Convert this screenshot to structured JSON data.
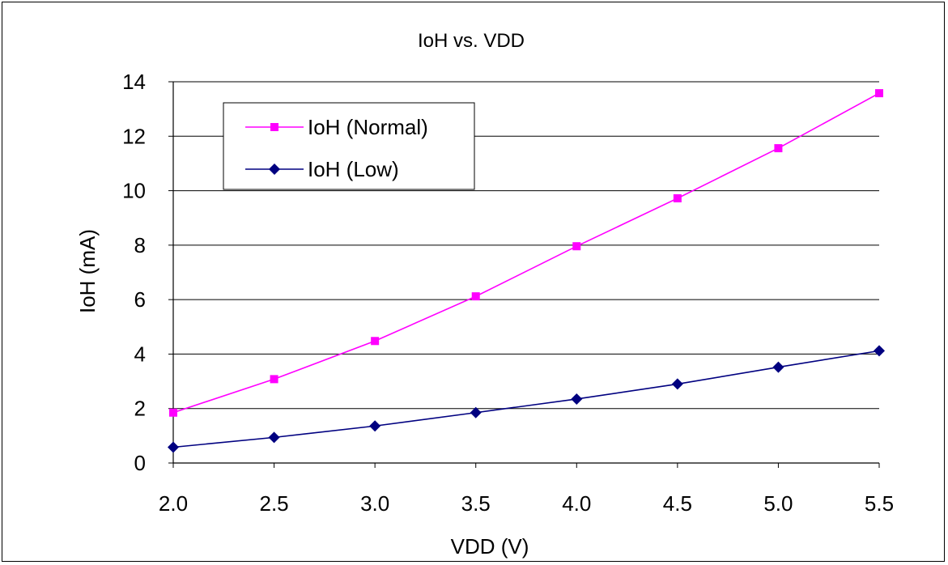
{
  "chart_data": {
    "type": "line",
    "title": "IoH vs. VDD",
    "xlabel": "VDD (V)",
    "ylabel": "IoH (mA)",
    "x": [
      2.0,
      2.5,
      3.0,
      3.5,
      4.0,
      4.5,
      5.0,
      5.5
    ],
    "x_tick_labels": [
      "2.0",
      "2.5",
      "3.0",
      "3.5",
      "4.0",
      "4.5",
      "5.0",
      "5.5"
    ],
    "xlim": [
      2.0,
      5.5
    ],
    "ylim": [
      0,
      14
    ],
    "y_ticks": [
      0,
      2,
      4,
      6,
      8,
      10,
      12,
      14
    ],
    "y_tick_labels": [
      "0",
      "2",
      "4",
      "6",
      "8",
      "10",
      "12",
      "14"
    ],
    "grid": "horizontal",
    "legend_position": "top-left",
    "series": [
      {
        "name": "IoH (Normal)",
        "color": "#ff00ff",
        "marker": "square",
        "values": [
          1.85,
          3.08,
          4.48,
          6.12,
          7.96,
          9.72,
          11.56,
          13.58
        ]
      },
      {
        "name": "IoH (Low)",
        "color": "#000080",
        "marker": "diamond",
        "values": [
          0.58,
          0.94,
          1.36,
          1.85,
          2.35,
          2.9,
          3.52,
          4.12
        ]
      }
    ]
  }
}
